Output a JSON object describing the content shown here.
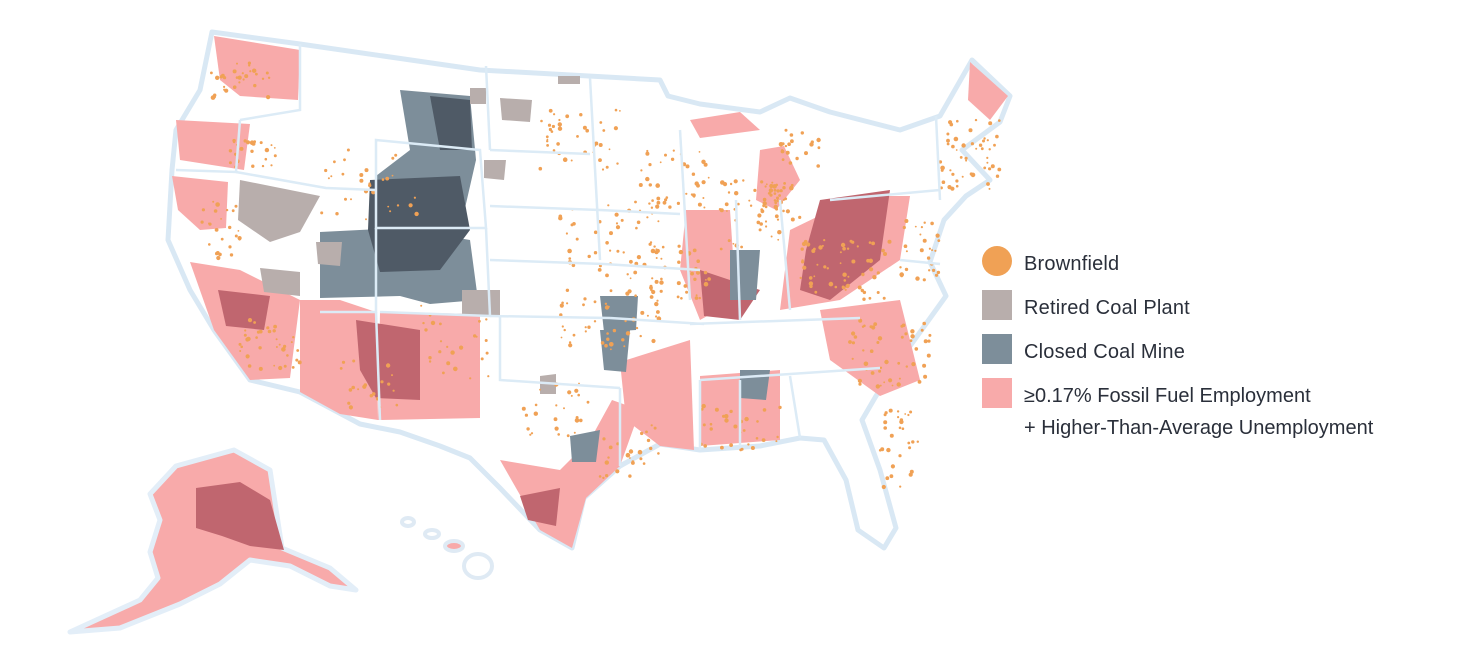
{
  "legend": {
    "items": [
      {
        "label": "Brownfield",
        "color": "#f0a155",
        "shape": "circle"
      },
      {
        "label": "Retired Coal Plant",
        "color": "#b8aeac",
        "shape": "square"
      },
      {
        "label": "Closed Coal Mine",
        "color": "#7d8e9a",
        "shape": "square"
      },
      {
        "label": "≥0.17% Fossil Fuel Employment",
        "label2": "+ Higher-Than-Average Unemployment",
        "color": "#f8aaaa",
        "shape": "square"
      }
    ]
  },
  "colors": {
    "land": "#ffffff",
    "outline": "#d9e8f4",
    "coast_halo": "#e3eef8",
    "brownfield": "#f0a155",
    "retired_coal_plant": "#b8aeac",
    "closed_coal_mine": "#7d8e9a",
    "closed_mine_dark": "#4f5a66",
    "fossil_employment": "#f8aaaa",
    "overlap_dark_red": "#c0666f"
  }
}
